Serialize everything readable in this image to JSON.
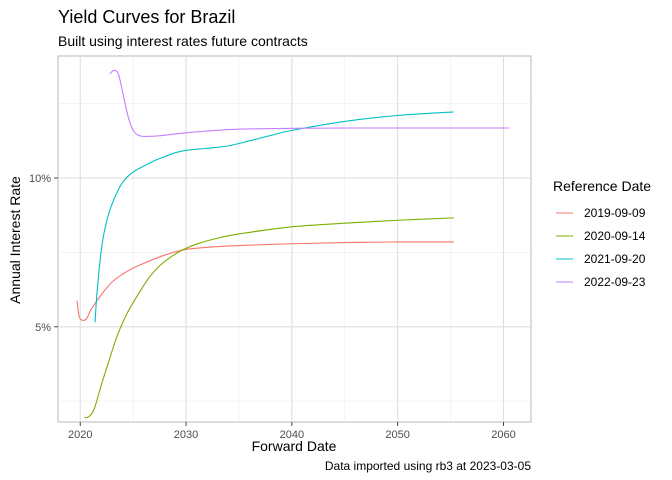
{
  "chart_data": {
    "type": "line",
    "title": "Yield Curves for Brazil",
    "subtitle": "Built using interest rates future contracts",
    "caption": "Data imported using rb3 at 2023-03-05",
    "xlabel": "Forward Date",
    "ylabel": "Annual Interest Rate",
    "xlim": [
      2017.9,
      2062.6
    ],
    "ylim": [
      0.018,
      0.141
    ],
    "x_ticks": [
      2020,
      2030,
      2040,
      2050,
      2060
    ],
    "x_tick_labels": [
      "2020",
      "2030",
      "2040",
      "2050",
      "2060"
    ],
    "y_ticks": [
      0.05,
      0.1
    ],
    "y_tick_labels": [
      "5%",
      "10%"
    ],
    "y_minor_ticks": [
      0.025,
      0.075,
      0.125
    ],
    "x_minor_ticks": [
      2025,
      2035,
      2045,
      2055
    ],
    "grid": true,
    "legend": {
      "title": "Reference Date",
      "position": "right"
    },
    "series": [
      {
        "name": "2019-09-09",
        "color": "#F8766D",
        "points": [
          [
            2019.7,
            0.0588
          ],
          [
            2019.9,
            0.0535
          ],
          [
            2020.2,
            0.0522
          ],
          [
            2020.6,
            0.0527
          ],
          [
            2021.0,
            0.0556
          ],
          [
            2022.0,
            0.0608
          ],
          [
            2023.0,
            0.065
          ],
          [
            2024.0,
            0.0677
          ],
          [
            2025.0,
            0.0697
          ],
          [
            2026.0,
            0.0713
          ],
          [
            2027.0,
            0.0728
          ],
          [
            2028.0,
            0.0741
          ],
          [
            2029.0,
            0.0752
          ],
          [
            2030.0,
            0.076
          ],
          [
            2032.0,
            0.0767
          ],
          [
            2035.0,
            0.0773
          ],
          [
            2040.0,
            0.0779
          ],
          [
            2045.0,
            0.0783
          ],
          [
            2050.0,
            0.0785
          ],
          [
            2055.3,
            0.0785
          ]
        ]
      },
      {
        "name": "2020-09-14",
        "color": "#7CAE00",
        "points": [
          [
            2020.4,
            0.0195
          ],
          [
            2020.8,
            0.0198
          ],
          [
            2021.3,
            0.0222
          ],
          [
            2022.0,
            0.0305
          ],
          [
            2022.8,
            0.0395
          ],
          [
            2023.5,
            0.047
          ],
          [
            2024.5,
            0.055
          ],
          [
            2025.5,
            0.061
          ],
          [
            2026.5,
            0.0665
          ],
          [
            2027.5,
            0.0705
          ],
          [
            2028.5,
            0.0733
          ],
          [
            2029.5,
            0.0755
          ],
          [
            2031.0,
            0.0778
          ],
          [
            2033.0,
            0.0798
          ],
          [
            2035.0,
            0.0812
          ],
          [
            2040.0,
            0.0836
          ],
          [
            2045.0,
            0.0848
          ],
          [
            2050.0,
            0.0858
          ],
          [
            2055.3,
            0.0866
          ]
        ]
      },
      {
        "name": "2021-09-20",
        "color": "#00BFC4",
        "points": [
          [
            2021.4,
            0.0515
          ],
          [
            2021.6,
            0.062
          ],
          [
            2022.0,
            0.076
          ],
          [
            2022.4,
            0.084
          ],
          [
            2023.0,
            0.0912
          ],
          [
            2024.0,
            0.0985
          ],
          [
            2025.0,
            0.102
          ],
          [
            2026.0,
            0.104
          ],
          [
            2027.0,
            0.1058
          ],
          [
            2028.0,
            0.1072
          ],
          [
            2029.0,
            0.1085
          ],
          [
            2030.0,
            0.1093
          ],
          [
            2032.0,
            0.11
          ],
          [
            2034.0,
            0.1108
          ],
          [
            2036.0,
            0.1125
          ],
          [
            2038.0,
            0.1143
          ],
          [
            2040.0,
            0.116
          ],
          [
            2045.0,
            0.119
          ],
          [
            2050.0,
            0.121
          ],
          [
            2055.3,
            0.1222
          ]
        ]
      },
      {
        "name": "2022-09-23",
        "color": "#C77CFF",
        "points": [
          [
            2022.8,
            0.135
          ],
          [
            2023.2,
            0.1362
          ],
          [
            2023.6,
            0.135
          ],
          [
            2024.0,
            0.129
          ],
          [
            2024.5,
            0.121
          ],
          [
            2025.0,
            0.116
          ],
          [
            2025.6,
            0.1142
          ],
          [
            2026.5,
            0.114
          ],
          [
            2027.5,
            0.1142
          ],
          [
            2028.5,
            0.1146
          ],
          [
            2030.0,
            0.1152
          ],
          [
            2032.0,
            0.1158
          ],
          [
            2035.0,
            0.1164
          ],
          [
            2040.0,
            0.1167
          ],
          [
            2045.0,
            0.1168
          ],
          [
            2050.0,
            0.1168
          ],
          [
            2055.0,
            0.1168
          ],
          [
            2060.5,
            0.1168
          ]
        ]
      }
    ]
  }
}
